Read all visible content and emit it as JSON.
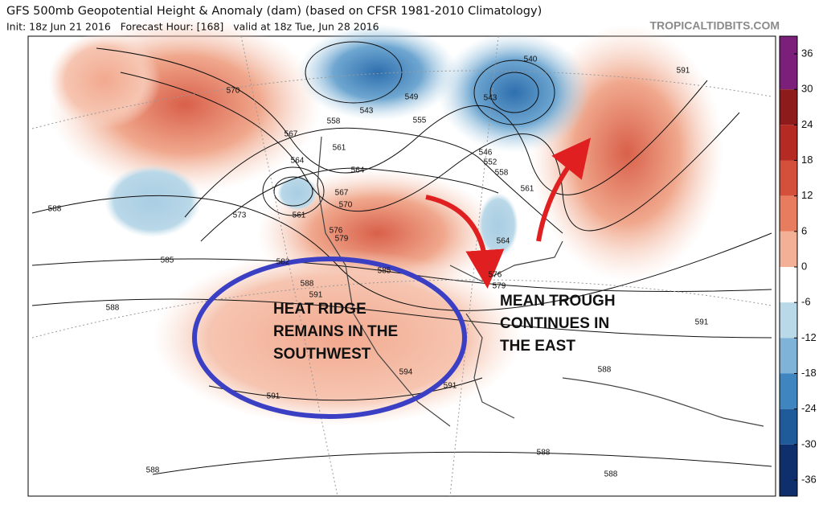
{
  "header": {
    "title": "GFS 500mb Geopotential Height & Anomaly (dam) (based on CFSR 1981-2010 Climatology)",
    "subtitle": "Init: 18z Jun 21 2016   Forecast Hour: [168]   valid at 18z Tue, Jun 28 2016",
    "watermark": "TROPICALTIDBITS.COM"
  },
  "contour_labels": [
    570,
    567,
    564,
    561,
    558,
    543,
    549,
    555,
    540,
    543,
    591,
    588,
    573,
    561,
    564,
    567,
    570,
    576,
    579,
    585,
    582,
    588,
    591,
    585,
    588,
    594,
    591,
    591,
    588,
    588,
    588,
    591,
    588,
    546,
    552,
    558,
    561,
    564,
    576,
    579
  ],
  "annotations": {
    "west": [
      "HEAT RIDGE",
      "REMAINS IN THE",
      "SOUTHWEST"
    ],
    "east": [
      "MEAN TROUGH",
      "CONTINUES IN",
      "THE  EAST"
    ]
  },
  "colorbar": {
    "ticks": [
      36,
      30,
      24,
      18,
      12,
      6,
      0,
      -6,
      -12,
      -18,
      -24,
      -30,
      -36
    ],
    "colors": [
      "#7b1f7b",
      "#8e1b1b",
      "#b52a22",
      "#d5503a",
      "#e87c5e",
      "#f3b097",
      "#ffffff",
      "#b9d8e8",
      "#7fb3d8",
      "#3f86c0",
      "#1f5a9b",
      "#0f2f6c"
    ]
  }
}
